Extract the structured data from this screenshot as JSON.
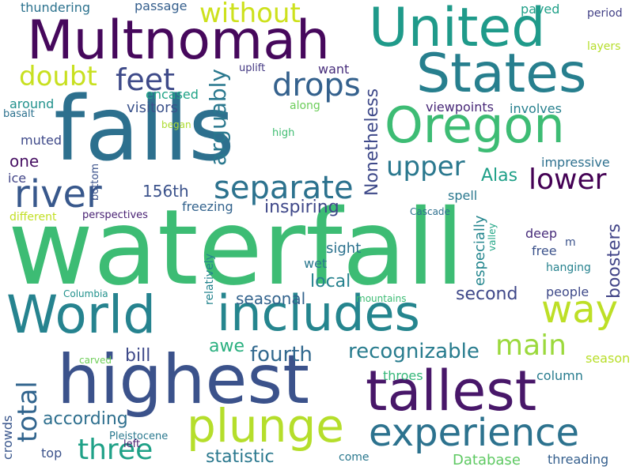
{
  "words": [
    {
      "text": "waterfall",
      "color": "#3dbc74",
      "vertical": false
    },
    {
      "text": "falls",
      "color": "#2d708e",
      "vertical": false
    },
    {
      "text": "highest",
      "color": "#3b528b",
      "vertical": false
    },
    {
      "text": "Multnomah",
      "color": "#46085c",
      "vertical": false
    },
    {
      "text": "United",
      "color": "#1f9a8a",
      "vertical": false
    },
    {
      "text": "States",
      "color": "#277f8e",
      "vertical": false
    },
    {
      "text": "Oregon",
      "color": "#3dbc74",
      "vertical": false
    },
    {
      "text": "World",
      "color": "#26838f",
      "vertical": false
    },
    {
      "text": "includes",
      "color": "#25858e",
      "vertical": false
    },
    {
      "text": "tallest",
      "color": "#481769",
      "vertical": false
    },
    {
      "text": "plunge",
      "color": "#b5de2b",
      "vertical": false
    },
    {
      "text": "experience",
      "color": "#2c728e",
      "vertical": false
    },
    {
      "text": "river",
      "color": "#38588c",
      "vertical": false
    },
    {
      "text": "separate",
      "color": "#2c728e",
      "vertical": false
    },
    {
      "text": "way",
      "color": "#bddf26",
      "vertical": false
    },
    {
      "text": "drops",
      "color": "#34618d",
      "vertical": false
    },
    {
      "text": "feet",
      "color": "#3e4a89",
      "vertical": false
    },
    {
      "text": "without",
      "color": "#cde11d",
      "vertical": false
    },
    {
      "text": "doubt",
      "color": "#c8e020",
      "vertical": false
    },
    {
      "text": "upper",
      "color": "#2a788e",
      "vertical": false
    },
    {
      "text": "lower",
      "color": "#440154",
      "vertical": false
    },
    {
      "text": "main",
      "color": "#9bd93c",
      "vertical": false
    },
    {
      "text": "total",
      "color": "#32658e",
      "vertical": true
    },
    {
      "text": "three",
      "color": "#1fa187",
      "vertical": false
    },
    {
      "text": "recognizable",
      "color": "#287c8e",
      "vertical": false
    },
    {
      "text": "fourth",
      "color": "#31688e",
      "vertical": false
    },
    {
      "text": "arguably",
      "color": "#2a788e",
      "vertical": true
    },
    {
      "text": "inspiring",
      "color": "#3f4889",
      "vertical": false
    },
    {
      "text": "Nonetheless",
      "color": "#3e4989",
      "vertical": true
    },
    {
      "text": "boosters",
      "color": "#414487",
      "vertical": true
    },
    {
      "text": "second",
      "color": "#3f4889",
      "vertical": false
    },
    {
      "text": "local",
      "color": "#26828e",
      "vertical": false
    },
    {
      "text": "seasonal",
      "color": "#33638d",
      "vertical": false
    },
    {
      "text": "statistic",
      "color": "#2a788e",
      "vertical": false
    },
    {
      "text": "according",
      "color": "#2e6f8e",
      "vertical": false
    },
    {
      "text": "Alas",
      "color": "#1fa088",
      "vertical": false
    },
    {
      "text": "156th",
      "color": "#3b528b",
      "vertical": false
    },
    {
      "text": "awe",
      "color": "#2ab07f",
      "vertical": false
    },
    {
      "text": "bill",
      "color": "#3e4989",
      "vertical": false
    },
    {
      "text": "Database",
      "color": "#5ec962",
      "vertical": false
    },
    {
      "text": "especially",
      "color": "#24868e",
      "vertical": true
    },
    {
      "text": "impressive",
      "color": "#2d708e",
      "vertical": false
    },
    {
      "text": "people",
      "color": "#3e4989",
      "vertical": false
    },
    {
      "text": "sight",
      "color": "#2c728e",
      "vertical": false
    },
    {
      "text": "freezing",
      "color": "#33638d",
      "vertical": false
    },
    {
      "text": "wet",
      "color": "#2a788e",
      "vertical": false
    },
    {
      "text": "one",
      "color": "#471063",
      "vertical": false
    },
    {
      "text": "viewpoints",
      "color": "#482878",
      "vertical": false
    },
    {
      "text": "visitors",
      "color": "#3b528b",
      "vertical": false
    },
    {
      "text": "involves",
      "color": "#27808e",
      "vertical": false
    },
    {
      "text": "encased",
      "color": "#20a386",
      "vertical": false
    },
    {
      "text": "around",
      "color": "#21918c",
      "vertical": false
    },
    {
      "text": "along",
      "color": "#6ccd5a",
      "vertical": false
    },
    {
      "text": "want",
      "color": "#472d7b",
      "vertical": false
    },
    {
      "text": "muted",
      "color": "#3e4989",
      "vertical": false
    },
    {
      "text": "ice",
      "color": "#414487",
      "vertical": false
    },
    {
      "text": "different",
      "color": "#c2df23",
      "vertical": false
    },
    {
      "text": "crowds",
      "color": "#39568c",
      "vertical": true
    },
    {
      "text": "top",
      "color": "#3b528b",
      "vertical": false
    },
    {
      "text": "paved",
      "color": "#1fa088",
      "vertical": false
    },
    {
      "text": "spell",
      "color": "#2a788e",
      "vertical": false
    },
    {
      "text": "deep",
      "color": "#472c7a",
      "vertical": false
    },
    {
      "text": "free",
      "color": "#3b528b",
      "vertical": false
    },
    {
      "text": "throes",
      "color": "#35b779",
      "vertical": false
    },
    {
      "text": "column",
      "color": "#287c8e",
      "vertical": false
    },
    {
      "text": "season",
      "color": "#b8de29",
      "vertical": false
    },
    {
      "text": "come",
      "color": "#2a788e",
      "vertical": false
    },
    {
      "text": "threading",
      "color": "#355f8d",
      "vertical": false
    },
    {
      "text": "thundering",
      "color": "#2c728e",
      "vertical": false
    },
    {
      "text": "passage",
      "color": "#355f8d",
      "vertical": false
    },
    {
      "text": "relatively",
      "color": "#25848e",
      "vertical": true
    },
    {
      "text": "period",
      "color": "#424086",
      "vertical": false
    },
    {
      "text": "layers",
      "color": "#b5de2b",
      "vertical": false
    },
    {
      "text": "uplift",
      "color": "#443983",
      "vertical": false
    },
    {
      "text": "basalt",
      "color": "#2c718e",
      "vertical": false
    },
    {
      "text": "began",
      "color": "#addc30",
      "vertical": false
    },
    {
      "text": "high",
      "color": "#40bd72",
      "vertical": false
    },
    {
      "text": "bottom",
      "color": "#3b528b",
      "vertical": true
    },
    {
      "text": "perspectives",
      "color": "#482173",
      "vertical": false
    },
    {
      "text": "Cascade",
      "color": "#2d708e",
      "vertical": false
    },
    {
      "text": "valley",
      "color": "#21a585",
      "vertical": true
    },
    {
      "text": "m",
      "color": "#3b528b",
      "vertical": false
    },
    {
      "text": "hanging",
      "color": "#26828e",
      "vertical": false
    },
    {
      "text": "Columbia",
      "color": "#21918c",
      "vertical": false
    },
    {
      "text": "left",
      "color": "#481f70",
      "vertical": false
    },
    {
      "text": "mountains",
      "color": "#3dbc74",
      "vertical": false
    },
    {
      "text": "carved",
      "color": "#6ece58",
      "vertical": false
    },
    {
      "text": "Pleistocene",
      "color": "#2a788e",
      "vertical": false
    }
  ]
}
